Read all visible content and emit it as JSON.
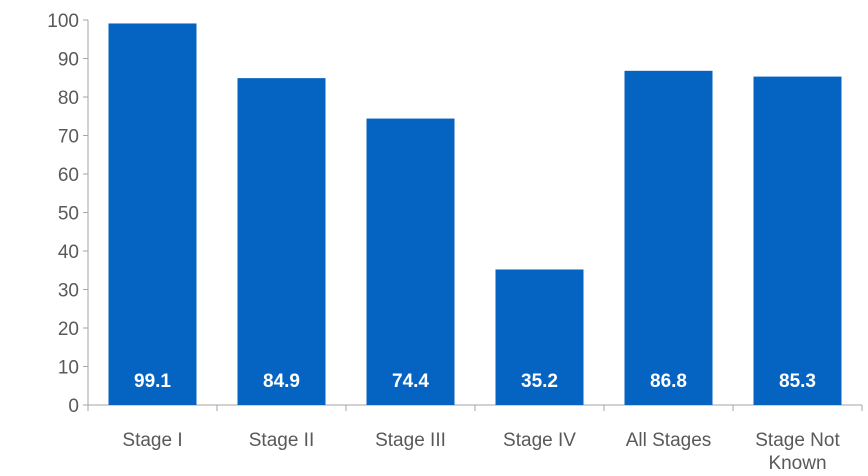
{
  "chart_data": {
    "type": "bar",
    "title": "",
    "xlabel": "",
    "ylabel": "",
    "categories": [
      "Stage I",
      "Stage II",
      "Stage III",
      "Stage IV",
      "All Stages",
      "Stage Not Known"
    ],
    "values": [
      99.1,
      84.9,
      74.4,
      35.2,
      86.8,
      85.3
    ],
    "data_labels": [
      "99.1",
      "84.9",
      "74.4",
      "35.2",
      "86.8",
      "85.3"
    ],
    "ylim": [
      0,
      100
    ],
    "yticks": [
      0,
      10,
      20,
      30,
      40,
      50,
      60,
      70,
      80,
      90,
      100
    ],
    "grid": false,
    "legend": "none",
    "colors": {
      "bar": "#0563c1",
      "data_label": "#ffffff",
      "tick_text": "#595959",
      "axis": "#a6a6a6"
    }
  }
}
